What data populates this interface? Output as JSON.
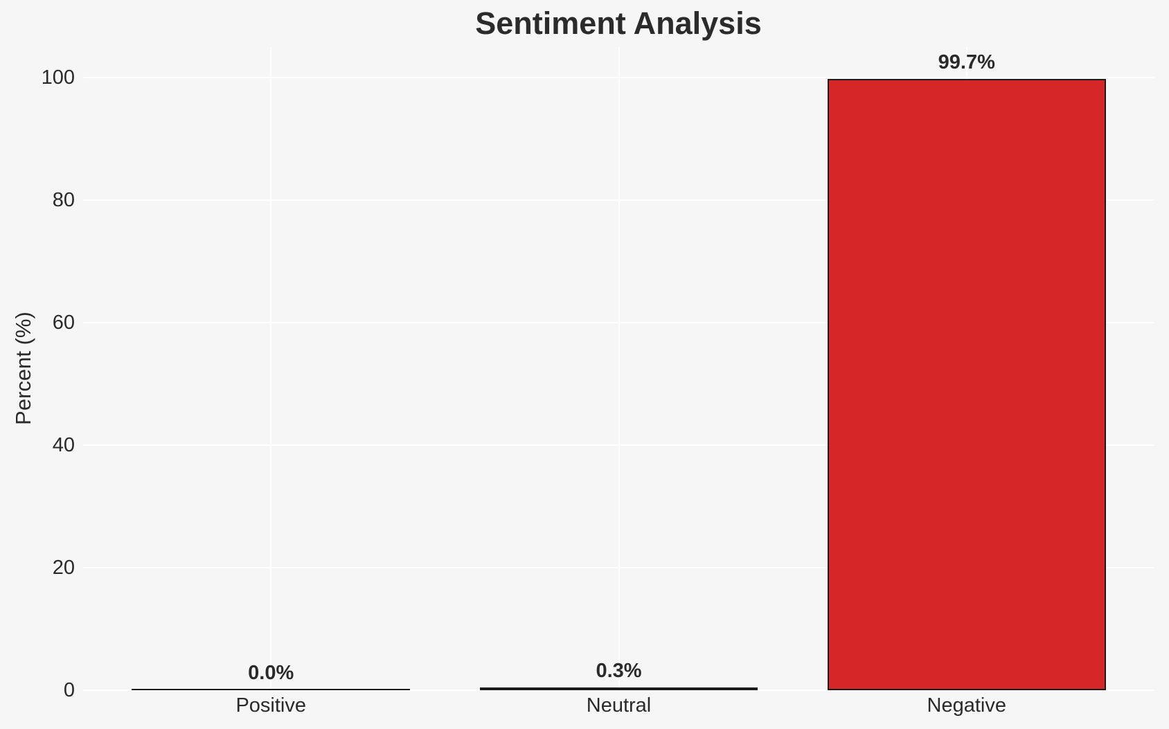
{
  "chart_data": {
    "type": "bar",
    "title": "Sentiment Analysis",
    "ylabel": "Percent (%)",
    "xlabel": "",
    "categories": [
      "Positive",
      "Neutral",
      "Negative"
    ],
    "values": [
      0.0,
      0.3,
      99.7
    ],
    "bar_labels": [
      "0.0%",
      "0.3%",
      "99.7%"
    ],
    "yticks": [
      0,
      20,
      40,
      60,
      80,
      100
    ],
    "ylim": [
      0,
      105
    ],
    "grid": true,
    "legend": false,
    "colors": {
      "bar_fill": "#d62728",
      "bar_edge": "#1a1a1a",
      "background": "#f6f6f7",
      "gridline": "#ffffff",
      "text": "#2a2a2a"
    }
  }
}
